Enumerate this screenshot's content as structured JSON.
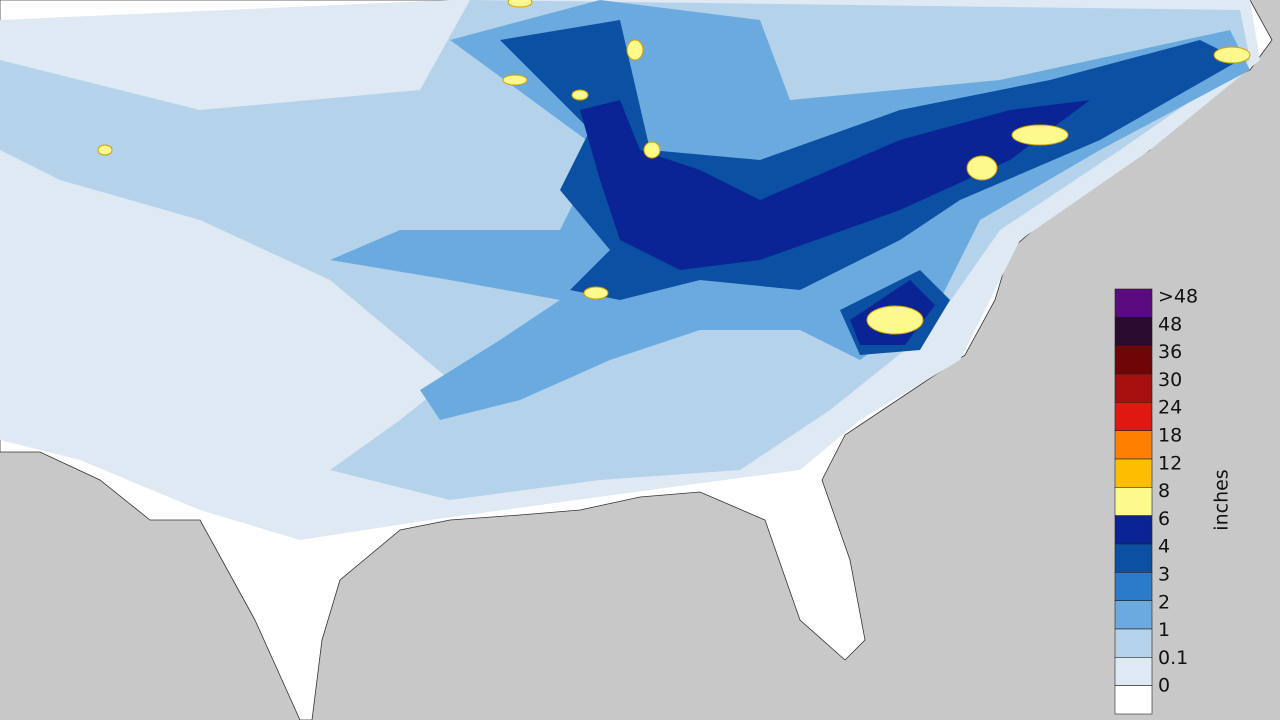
{
  "legend": {
    "title": "inches",
    "items": [
      {
        "label": ">48",
        "color": "#5b0a80"
      },
      {
        "label": "48",
        "color": "#2a0a2e"
      },
      {
        "label": "36",
        "color": "#6e0606"
      },
      {
        "label": "30",
        "color": "#a80f0f"
      },
      {
        "label": "24",
        "color": "#e0180f"
      },
      {
        "label": "18",
        "color": "#ff8000"
      },
      {
        "label": "12",
        "color": "#fdbe00"
      },
      {
        "label": "8",
        "color": "#fdf98c"
      },
      {
        "label": "6",
        "color": "#0a2496"
      },
      {
        "label": "4",
        "color": "#0c50a4"
      },
      {
        "label": "3",
        "color": "#2b7bc8"
      },
      {
        "label": "2",
        "color": "#6aaadf"
      },
      {
        "label": "1",
        "color": "#b5d2eb"
      },
      {
        "label": "0.1",
        "color": "#dfe9f4"
      },
      {
        "label": "0",
        "color": "#ffffff"
      }
    ]
  }
}
